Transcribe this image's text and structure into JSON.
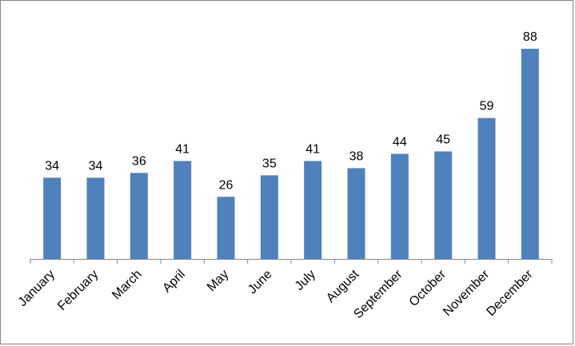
{
  "chart_data": {
    "type": "bar",
    "categories": [
      "January",
      "February",
      "March",
      "April",
      "May",
      "June",
      "July",
      "August",
      "September",
      "October",
      "November",
      "December"
    ],
    "values": [
      34,
      34,
      36,
      41,
      26,
      35,
      41,
      38,
      44,
      45,
      59,
      88
    ],
    "color": "#4f81bd"
  }
}
